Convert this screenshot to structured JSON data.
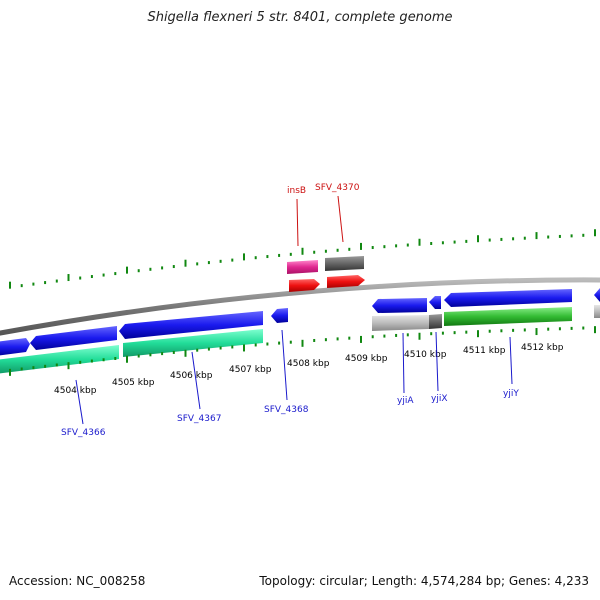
{
  "title": "Shigella flexneri 5 str. 8401, complete genome",
  "footer": {
    "accession": "Accession: NC_008258",
    "summary": "Topology: circular; Length: 4,574,284 bp; Genes: 4,233"
  },
  "colors": {
    "forward_gene": "#1a1aee",
    "reverse_gene": "#1a1aee",
    "cds_teal": "#2ee0a0",
    "cds_green": "#33bb33",
    "trna_magenta": "#e02890",
    "red_feature": "#ee1111",
    "gray_feature": "#666666",
    "tick_green": "#118811",
    "label_blue": "#1a1acc",
    "label_red": "#cc1111"
  },
  "ticks": [
    {
      "label": "4504 kbp"
    },
    {
      "label": "4505 kbp"
    },
    {
      "label": "4506 kbp"
    },
    {
      "label": "4507 kbp"
    },
    {
      "label": "4508 kbp"
    },
    {
      "label": "4509 kbp"
    },
    {
      "label": "4510 kbp"
    },
    {
      "label": "4511 kbp"
    },
    {
      "label": "4512 kbp"
    }
  ],
  "gene_labels_bottom": [
    {
      "name": "SFV_4366"
    },
    {
      "name": "SFV_4367"
    },
    {
      "name": "SFV_4368"
    },
    {
      "name": "yjiA"
    },
    {
      "name": "yjiX"
    },
    {
      "name": "yjiY"
    }
  ],
  "gene_labels_top": [
    {
      "name": "insB"
    },
    {
      "name": "SFV_4370"
    }
  ]
}
